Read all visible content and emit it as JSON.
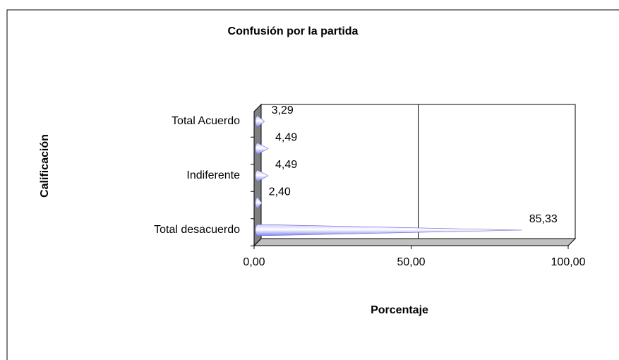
{
  "chart_data": {
    "type": "bar",
    "orientation": "horizontal",
    "title": "Confusión por la partida",
    "xlabel": "Porcentaje",
    "ylabel": "Calificación",
    "categories": [
      "Total desacuerdo",
      null,
      "Indiferente",
      null,
      "Total Acuerdo"
    ],
    "values": [
      85.33,
      2.4,
      4.49,
      4.49,
      3.29
    ],
    "value_labels": [
      "85,33",
      "2,40",
      "4,49",
      "4,49",
      "3,29"
    ],
    "color": "#9999ff",
    "xlim": [
      0,
      100
    ],
    "xticks": [
      {
        "value": 0,
        "label": "0,00"
      },
      {
        "value": 50,
        "label": "50,00"
      },
      {
        "value": 100,
        "label": "100,00"
      }
    ],
    "grid": true
  }
}
